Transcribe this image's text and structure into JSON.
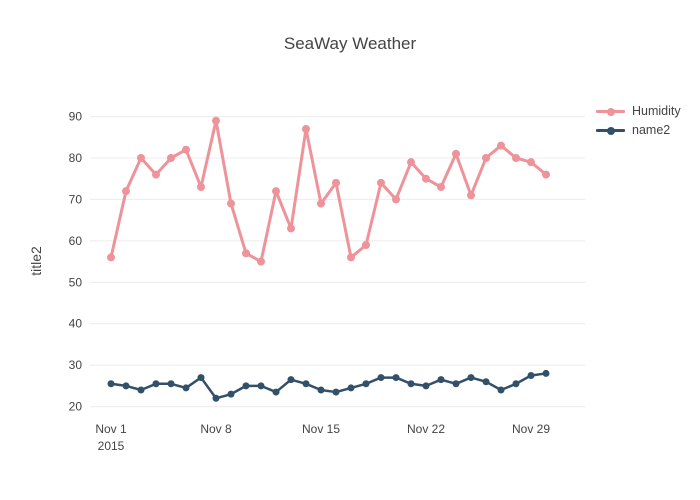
{
  "chart_data": {
    "type": "line",
    "title": "SeaWay Weather",
    "xlabel": "",
    "ylabel": "title2",
    "x_unit": "date, November 2015 (day of month)",
    "x_days": [
      1,
      2,
      3,
      4,
      5,
      6,
      7,
      8,
      9,
      10,
      11,
      12,
      13,
      14,
      15,
      16,
      17,
      18,
      19,
      20,
      21,
      22,
      23,
      24,
      25,
      26,
      27,
      28,
      29,
      30
    ],
    "series": [
      {
        "name": "Humidity",
        "color": "#ed9399",
        "values": [
          56,
          72,
          80,
          76,
          80,
          82,
          73,
          89,
          69,
          57,
          55,
          72,
          63,
          87,
          69,
          74,
          56,
          59,
          74,
          70,
          79,
          75,
          73,
          81,
          71,
          80,
          83,
          80,
          79,
          76
        ]
      },
      {
        "name": "name2",
        "color": "#33506b",
        "values": [
          25.5,
          25,
          24,
          25.5,
          25.5,
          24.5,
          27,
          22,
          23,
          25,
          25,
          23.5,
          26.5,
          25.5,
          24,
          23.5,
          24.5,
          25.5,
          27,
          27,
          25.5,
          25,
          26.5,
          25.5,
          27,
          26,
          24,
          25.5,
          27.5,
          28
        ]
      }
    ],
    "x_tick_days": [
      1,
      8,
      15,
      22,
      29
    ],
    "x_tick_labels": [
      "Nov 1",
      "Nov 8",
      "Nov 15",
      "Nov 22",
      "Nov 29"
    ],
    "x_tick_sublabel": "2015",
    "yticks": [
      20,
      30,
      40,
      50,
      60,
      70,
      80,
      90
    ],
    "ylim": [
      17,
      94
    ],
    "xlim": [
      -0.4,
      32.6
    ],
    "grid": true,
    "legend_position": "outside-top-right",
    "background_color": "#ffffff",
    "grid_color": "#ececec",
    "text_color": "#444444"
  }
}
